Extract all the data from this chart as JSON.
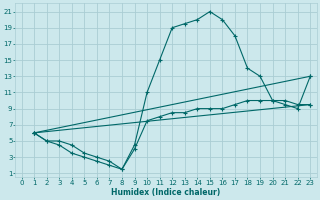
{
  "xlabel": "Humidex (Indice chaleur)",
  "bg_color": "#cce8ec",
  "grid_color": "#aacdd4",
  "line_color": "#006868",
  "xlim": [
    -0.5,
    23.5
  ],
  "ylim": [
    0.5,
    22
  ],
  "xticks": [
    0,
    1,
    2,
    3,
    4,
    5,
    6,
    7,
    8,
    9,
    10,
    11,
    12,
    13,
    14,
    15,
    16,
    17,
    18,
    19,
    20,
    21,
    22,
    23
  ],
  "yticks": [
    1,
    3,
    5,
    7,
    9,
    11,
    13,
    15,
    17,
    19,
    21
  ],
  "line1_x": [
    1,
    2,
    3,
    4,
    5,
    6,
    7,
    8,
    9,
    10,
    11,
    12,
    13,
    14,
    15,
    16,
    17,
    18,
    19,
    20,
    21,
    22,
    23
  ],
  "line1_y": [
    6,
    5,
    5,
    4.5,
    3.5,
    3,
    2.5,
    1.5,
    4.5,
    11,
    15,
    19,
    19.5,
    20,
    21,
    20,
    18,
    14,
    13,
    10,
    9.5,
    9,
    13
  ],
  "line2_x": [
    1,
    2,
    3,
    4,
    5,
    6,
    7,
    8,
    9,
    10,
    11,
    12,
    13,
    14,
    15,
    16,
    17,
    18,
    19,
    20,
    21,
    22,
    23
  ],
  "line2_y": [
    6,
    5,
    4.5,
    3.5,
    3,
    2.5,
    2,
    1.5,
    4,
    7.5,
    8,
    8.5,
    8.5,
    9,
    9,
    9,
    9.5,
    10,
    10,
    10,
    10,
    9.5,
    9.5
  ],
  "line3_x": [
    1,
    23
  ],
  "line3_y": [
    6,
    9.5
  ],
  "line4_x": [
    1,
    23
  ],
  "line4_y": [
    6,
    13
  ]
}
